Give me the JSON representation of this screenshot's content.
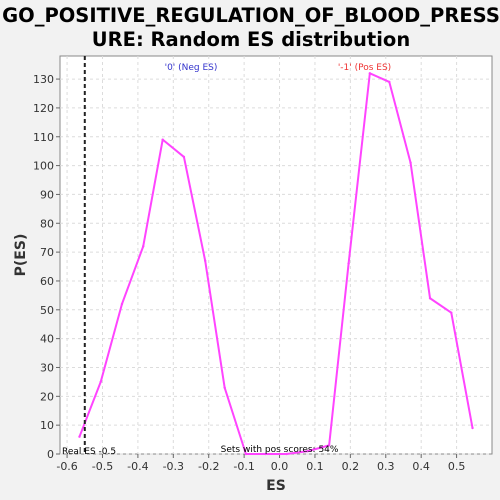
{
  "chart_data": {
    "type": "line",
    "title_line1": "GO_POSITIVE_REGULATION_OF_BLOOD_PRESS",
    "title_line2": "URE: Random ES distribution",
    "xlabel": "ES",
    "ylabel": "P(ES)",
    "xlim": [
      -0.62,
      0.6
    ],
    "ylim": [
      0,
      138
    ],
    "x_ticks": [
      -0.6,
      -0.5,
      -0.4,
      -0.3,
      -0.2,
      -0.1,
      0.0,
      0.1,
      0.2,
      0.3,
      0.4,
      0.5
    ],
    "y_ticks": [
      0,
      10,
      20,
      30,
      40,
      50,
      60,
      70,
      80,
      90,
      100,
      110,
      120,
      130
    ],
    "grid": true,
    "series": [
      {
        "color": "#ff44ff",
        "x": [
          -0.565,
          -0.505,
          -0.445,
          -0.385,
          -0.33,
          -0.27,
          -0.21,
          -0.155,
          -0.095,
          -0.04,
          0.02,
          0.08,
          0.14,
          0.195,
          0.255,
          0.31,
          0.37,
          0.425,
          0.485,
          0.545
        ],
        "y": [
          6,
          25,
          52,
          72,
          109,
          103,
          67,
          23,
          0,
          0,
          0,
          1,
          3,
          66,
          132,
          129,
          101,
          54,
          49,
          9
        ]
      }
    ],
    "real_es": {
      "x": -0.55,
      "label": "Real ES -0.5"
    },
    "annotations": {
      "neg_label": "'0' (Neg ES)",
      "pos_label": "'-1' (Pos ES)",
      "neg_color": "#3333cc",
      "pos_color": "#ee3333",
      "sets_label": "Sets with pos scores: 54%"
    }
  }
}
